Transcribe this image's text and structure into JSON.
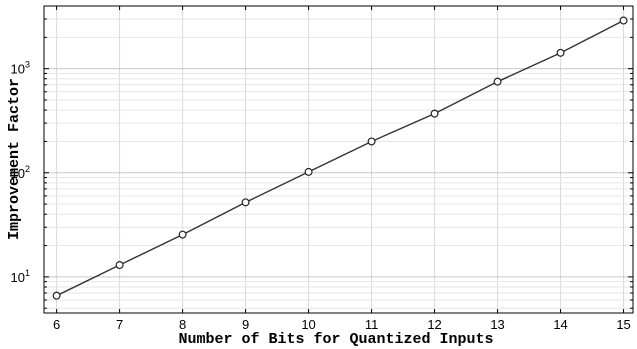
{
  "chart_data": {
    "type": "line",
    "title": "",
    "xlabel": "Number of Bits for Quantized Inputs",
    "ylabel": "Improvement Factor",
    "x": [
      6,
      7,
      8,
      9,
      10,
      11,
      12,
      13,
      14,
      15
    ],
    "series": [
      {
        "values": [
          6.6,
          13,
          25.5,
          52,
          102,
          200,
          370,
          750,
          1420,
          2900
        ]
      }
    ],
    "xlim": [
      5.8,
      15.15
    ],
    "xticks": [
      "6",
      "7",
      "8",
      "9",
      "10",
      "11",
      "12",
      "13",
      "14",
      "15"
    ],
    "yscale": "log",
    "ylim": [
      4.5,
      4000
    ],
    "yticks": [
      {
        "base": "10",
        "exp": "1"
      },
      {
        "base": "10",
        "exp": "2"
      },
      {
        "base": "10",
        "exp": "3"
      }
    ],
    "grid": true,
    "marker": "circle",
    "line_color": "#333333"
  }
}
